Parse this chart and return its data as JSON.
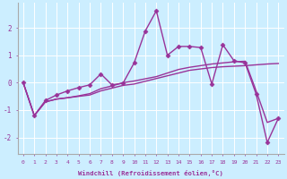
{
  "xlabel": "Windchill (Refroidissement éolien,°C)",
  "background_color": "#cceeff",
  "grid_color": "#ffffff",
  "line_color": "#993399",
  "xlim": [
    -0.5,
    23.5
  ],
  "ylim": [
    -2.6,
    2.9
  ],
  "yticks": [
    -2,
    -1,
    0,
    1,
    2
  ],
  "xticks": [
    0,
    1,
    2,
    3,
    4,
    5,
    6,
    7,
    8,
    9,
    10,
    11,
    12,
    13,
    14,
    15,
    16,
    17,
    18,
    19,
    20,
    21,
    22,
    23
  ],
  "series": [
    {
      "x": [
        0,
        1,
        2,
        3,
        4,
        5,
        6,
        7,
        8,
        9,
        10,
        11,
        12,
        13,
        14,
        15,
        16,
        17,
        18,
        19,
        20,
        21,
        22,
        23
      ],
      "y": [
        0.0,
        -1.2,
        -0.7,
        -0.6,
        -0.55,
        -0.5,
        -0.45,
        -0.3,
        -0.2,
        -0.1,
        -0.05,
        0.05,
        0.15,
        0.25,
        0.35,
        0.45,
        0.5,
        0.55,
        0.58,
        0.6,
        0.62,
        0.65,
        0.68,
        0.7
      ],
      "marker": null,
      "linewidth": 1.0
    },
    {
      "x": [
        0,
        1,
        2,
        3,
        4,
        5,
        6,
        7,
        8,
        9,
        10,
        11,
        12,
        13,
        14,
        15,
        16,
        17,
        18,
        19,
        20,
        21,
        22,
        23
      ],
      "y": [
        0.0,
        -1.2,
        -0.7,
        -0.6,
        -0.55,
        -0.48,
        -0.4,
        -0.22,
        -0.12,
        0.0,
        0.06,
        0.14,
        0.22,
        0.35,
        0.48,
        0.56,
        0.62,
        0.68,
        0.72,
        0.76,
        0.78,
        -0.3,
        -1.45,
        -1.3
      ],
      "marker": null,
      "linewidth": 1.0
    },
    {
      "x": [
        0,
        1,
        2,
        3,
        4,
        5,
        6,
        7,
        8,
        9,
        10,
        11,
        12,
        13,
        14,
        15,
        16,
        17,
        18,
        19,
        20,
        21,
        22,
        23
      ],
      "y": [
        0.0,
        -1.2,
        -0.65,
        -0.45,
        -0.3,
        -0.18,
        -0.08,
        0.32,
        -0.08,
        -0.02,
        0.72,
        1.88,
        2.62,
        1.0,
        1.32,
        1.32,
        1.28,
        -0.05,
        1.38,
        0.8,
        0.72,
        -0.42,
        -2.18,
        -1.3
      ],
      "marker": "D",
      "linewidth": 1.0
    }
  ]
}
